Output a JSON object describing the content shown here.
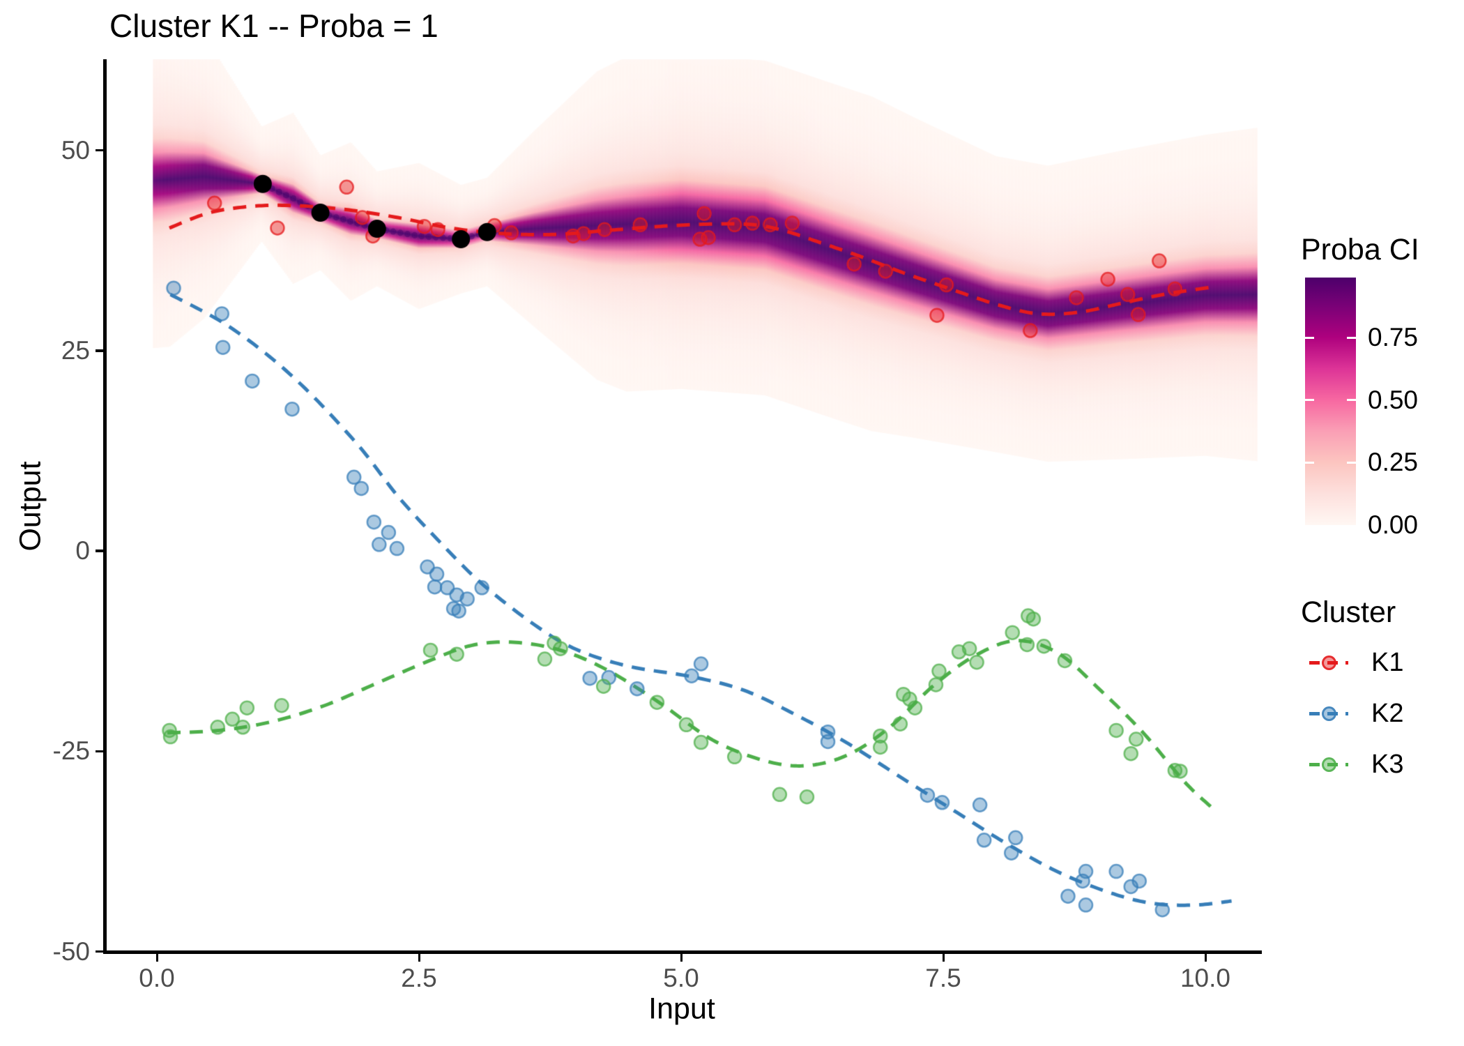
{
  "title": "Cluster K1 -- Proba = 1",
  "axis": {
    "x_label": "Input",
    "y_label": "Output",
    "x_ticks": [
      {
        "v": 0,
        "label": "0.0"
      },
      {
        "v": 2.5,
        "label": "2.5"
      },
      {
        "v": 5,
        "label": "5.0"
      },
      {
        "v": 7.5,
        "label": "7.5"
      },
      {
        "v": 10,
        "label": "10.0"
      }
    ],
    "y_ticks": [
      {
        "v": 50,
        "label": "50"
      },
      {
        "v": 25,
        "label": "25"
      },
      {
        "v": 0,
        "label": "0"
      },
      {
        "v": -25,
        "label": "-25"
      },
      {
        "v": -50,
        "label": "-50"
      }
    ]
  },
  "legend": {
    "proba": {
      "title": "Proba CI",
      "bar_max": 0.99,
      "ticks": [
        {
          "v": 0.75,
          "label": "0.75"
        },
        {
          "v": 0.5,
          "label": "0.50"
        },
        {
          "v": 0.25,
          "label": "0.25"
        },
        {
          "v": 0.0,
          "label": "0.00"
        }
      ],
      "colormap": [
        [
          0.0,
          "#FFF7F3"
        ],
        [
          0.125,
          "#FDE0DD"
        ],
        [
          0.25,
          "#FCC5C0"
        ],
        [
          0.375,
          "#FA9FB5"
        ],
        [
          0.5,
          "#F768A1"
        ],
        [
          0.625,
          "#DD3497"
        ],
        [
          0.75,
          "#AE017E"
        ],
        [
          0.875,
          "#7A0177"
        ],
        [
          1.0,
          "#49006A"
        ]
      ]
    },
    "cluster": {
      "title": "Cluster",
      "entries": [
        {
          "label": "K1",
          "color": "#E41A1C"
        },
        {
          "label": "K2",
          "color": "#377EB8"
        },
        {
          "label": "K3",
          "color": "#4DAF4A"
        }
      ]
    }
  },
  "chart_data": {
    "type": "scatter",
    "title": "Cluster K1 -- Proba = 1",
    "xlabel": "Input",
    "ylabel": "Output",
    "xlim": [
      -0.5,
      10.5
    ],
    "ylim": [
      -50,
      61
    ],
    "grid": false,
    "legend_position": "right",
    "series": [
      {
        "name": "K1",
        "color": "#E41A1C",
        "points": [
          [
            0.55,
            43.4
          ],
          [
            1.15,
            40.3
          ],
          [
            1.81,
            45.4
          ],
          [
            1.96,
            41.6
          ],
          [
            2.06,
            39.3
          ],
          [
            2.55,
            40.5
          ],
          [
            2.68,
            40.1
          ],
          [
            3.22,
            40.6
          ],
          [
            3.38,
            39.7
          ],
          [
            3.97,
            39.3
          ],
          [
            4.07,
            39.6
          ],
          [
            4.27,
            40.1
          ],
          [
            4.61,
            40.7
          ],
          [
            5.18,
            38.9
          ],
          [
            5.26,
            39.1
          ],
          [
            5.22,
            42.1
          ],
          [
            5.51,
            40.7
          ],
          [
            5.68,
            40.9
          ],
          [
            5.85,
            40.7
          ],
          [
            6.06,
            40.9
          ],
          [
            6.65,
            35.8
          ],
          [
            6.95,
            34.9
          ],
          [
            7.44,
            29.4
          ],
          [
            7.53,
            33.2
          ],
          [
            8.33,
            27.5
          ],
          [
            8.77,
            31.6
          ],
          [
            9.07,
            33.9
          ],
          [
            9.26,
            32.0
          ],
          [
            9.36,
            29.5
          ],
          [
            9.56,
            36.2
          ],
          [
            9.71,
            32.7
          ]
        ],
        "mean_curve": [
          [
            0.12,
            40.3
          ],
          [
            0.5,
            42.2
          ],
          [
            0.9,
            43.0
          ],
          [
            1.3,
            43.1
          ],
          [
            1.8,
            42.6
          ],
          [
            2.3,
            41.6
          ],
          [
            2.8,
            40.3
          ],
          [
            3.3,
            39.6
          ],
          [
            3.8,
            39.5
          ],
          [
            4.3,
            40.0
          ],
          [
            4.8,
            40.5
          ],
          [
            5.3,
            40.8
          ],
          [
            5.7,
            40.7
          ],
          [
            6.0,
            39.9
          ],
          [
            6.3,
            38.6
          ],
          [
            6.7,
            36.8
          ],
          [
            7.1,
            34.8
          ],
          [
            7.5,
            33.0
          ],
          [
            8.0,
            30.8
          ],
          [
            8.4,
            29.6
          ],
          [
            8.8,
            29.8
          ],
          [
            9.2,
            30.9
          ],
          [
            9.6,
            32.0
          ],
          [
            10.05,
            32.9
          ]
        ]
      },
      {
        "name": "K2",
        "color": "#377EB8",
        "points": [
          [
            0.16,
            32.8
          ],
          [
            0.62,
            29.6
          ],
          [
            0.63,
            25.4
          ],
          [
            0.91,
            21.2
          ],
          [
            1.29,
            17.7
          ],
          [
            1.88,
            9.2
          ],
          [
            1.95,
            7.8
          ],
          [
            2.07,
            3.6
          ],
          [
            2.12,
            0.8
          ],
          [
            2.21,
            2.3
          ],
          [
            2.29,
            0.3
          ],
          [
            2.58,
            -2.0
          ],
          [
            2.67,
            -2.9
          ],
          [
            2.65,
            -4.5
          ],
          [
            2.77,
            -4.6
          ],
          [
            2.86,
            -5.5
          ],
          [
            2.96,
            -6.0
          ],
          [
            2.83,
            -7.2
          ],
          [
            2.88,
            -7.5
          ],
          [
            3.1,
            -4.6
          ],
          [
            4.13,
            -15.9
          ],
          [
            4.31,
            -15.8
          ],
          [
            4.58,
            -17.2
          ],
          [
            5.1,
            -15.6
          ],
          [
            5.19,
            -14.1
          ],
          [
            6.4,
            -22.6
          ],
          [
            6.4,
            -23.8
          ],
          [
            7.35,
            -30.5
          ],
          [
            7.49,
            -31.4
          ],
          [
            7.85,
            -31.7
          ],
          [
            7.89,
            -36.1
          ],
          [
            8.19,
            -35.8
          ],
          [
            8.15,
            -37.7
          ],
          [
            8.69,
            -43.1
          ],
          [
            8.86,
            -40.0
          ],
          [
            8.83,
            -41.2
          ],
          [
            8.86,
            -44.2
          ],
          [
            9.15,
            -40.0
          ],
          [
            9.29,
            -41.9
          ],
          [
            9.37,
            -41.2
          ],
          [
            9.59,
            -44.8
          ]
        ],
        "mean_curve": [
          [
            0.13,
            32.0
          ],
          [
            0.7,
            27.9
          ],
          [
            1.3,
            21.7
          ],
          [
            1.9,
            13.5
          ],
          [
            2.3,
            6.8
          ],
          [
            2.7,
            1.1
          ],
          [
            3.1,
            -4.1
          ],
          [
            3.6,
            -9.2
          ],
          [
            4.0,
            -12.3
          ],
          [
            4.5,
            -14.4
          ],
          [
            5.1,
            -15.7
          ],
          [
            5.6,
            -17.4
          ],
          [
            6.1,
            -20.5
          ],
          [
            6.6,
            -24.1
          ],
          [
            7.1,
            -28.3
          ],
          [
            7.6,
            -32.4
          ],
          [
            8.1,
            -36.5
          ],
          [
            8.6,
            -40.1
          ],
          [
            9.1,
            -42.7
          ],
          [
            9.5,
            -44.0
          ],
          [
            9.9,
            -44.2
          ],
          [
            10.25,
            -43.7
          ]
        ]
      },
      {
        "name": "K3",
        "color": "#4DAF4A",
        "points": [
          [
            0.12,
            -22.4
          ],
          [
            0.13,
            -23.2
          ],
          [
            0.58,
            -22.0
          ],
          [
            0.72,
            -21.0
          ],
          [
            0.82,
            -22.0
          ],
          [
            0.86,
            -19.6
          ],
          [
            1.19,
            -19.3
          ],
          [
            2.61,
            -12.4
          ],
          [
            2.86,
            -12.9
          ],
          [
            3.7,
            -13.5
          ],
          [
            3.79,
            -11.5
          ],
          [
            3.85,
            -12.2
          ],
          [
            4.26,
            -16.9
          ],
          [
            4.77,
            -18.9
          ],
          [
            5.05,
            -21.7
          ],
          [
            5.19,
            -23.9
          ],
          [
            5.51,
            -25.7
          ],
          [
            5.94,
            -30.4
          ],
          [
            6.2,
            -30.7
          ],
          [
            6.9,
            -23.1
          ],
          [
            6.9,
            -24.5
          ],
          [
            7.09,
            -21.6
          ],
          [
            7.12,
            -17.9
          ],
          [
            7.18,
            -18.5
          ],
          [
            7.23,
            -19.6
          ],
          [
            7.43,
            -16.7
          ],
          [
            7.46,
            -15.0
          ],
          [
            7.82,
            -13.9
          ],
          [
            7.65,
            -12.6
          ],
          [
            7.75,
            -12.2
          ],
          [
            8.16,
            -10.2
          ],
          [
            8.3,
            -11.7
          ],
          [
            8.31,
            -8.1
          ],
          [
            8.36,
            -8.5
          ],
          [
            8.46,
            -11.9
          ],
          [
            8.66,
            -13.7
          ],
          [
            9.15,
            -22.4
          ],
          [
            9.34,
            -23.5
          ],
          [
            9.29,
            -25.3
          ],
          [
            9.71,
            -27.4
          ],
          [
            9.76,
            -27.5
          ]
        ],
        "mean_curve": [
          [
            0.1,
            -22.7
          ],
          [
            0.6,
            -22.4
          ],
          [
            1.1,
            -21.3
          ],
          [
            1.6,
            -19.3
          ],
          [
            2.1,
            -16.5
          ],
          [
            2.6,
            -13.7
          ],
          [
            3.0,
            -11.8
          ],
          [
            3.4,
            -11.4
          ],
          [
            3.85,
            -12.4
          ],
          [
            4.3,
            -14.9
          ],
          [
            4.8,
            -19.0
          ],
          [
            5.3,
            -23.6
          ],
          [
            5.8,
            -26.2
          ],
          [
            6.2,
            -26.8
          ],
          [
            6.6,
            -25.4
          ],
          [
            7.0,
            -21.9
          ],
          [
            7.4,
            -16.9
          ],
          [
            7.8,
            -13.1
          ],
          [
            8.2,
            -11.2
          ],
          [
            8.6,
            -12.8
          ],
          [
            9.0,
            -17.4
          ],
          [
            9.4,
            -22.6
          ],
          [
            9.8,
            -28.8
          ],
          [
            10.05,
            -31.9
          ]
        ]
      }
    ],
    "observed": {
      "name": "K1 observed points",
      "color": "#000000",
      "points": [
        [
          1.01,
          45.8
        ],
        [
          1.56,
          42.2
        ],
        [
          2.1,
          40.2
        ],
        [
          2.9,
          38.9
        ],
        [
          3.15,
          39.8
        ]
      ]
    },
    "proba_ribbon": {
      "name": "Proba CI density band (cluster K1)",
      "note": "path entries: [x, center_y, sigma_y, peak_proba]",
      "path": [
        [
          -0.03,
          46.2,
          2.4,
          0.8
        ],
        [
          0.45,
          46.7,
          1.8,
          0.95
        ],
        [
          1.0,
          45.8,
          0.45,
          1.0
        ],
        [
          1.3,
          44.0,
          0.9,
          0.9
        ],
        [
          1.56,
          42.2,
          0.45,
          1.0
        ],
        [
          1.85,
          41.1,
          0.8,
          0.9
        ],
        [
          2.1,
          40.2,
          0.45,
          1.0
        ],
        [
          2.5,
          39.3,
          0.7,
          0.95
        ],
        [
          2.9,
          38.9,
          0.4,
          1.0
        ],
        [
          3.15,
          39.8,
          0.4,
          1.0
        ],
        [
          3.6,
          40.2,
          1.1,
          0.95
        ],
        [
          4.2,
          40.6,
          2.0,
          0.9
        ],
        [
          5.0,
          41.1,
          2.6,
          0.88
        ],
        [
          5.8,
          40.3,
          2.5,
          0.9
        ],
        [
          6.5,
          37.2,
          2.3,
          0.92
        ],
        [
          7.2,
          34.2,
          2.1,
          0.95
        ],
        [
          8.0,
          30.8,
          1.9,
          0.95
        ],
        [
          8.5,
          29.6,
          1.9,
          0.95
        ],
        [
          9.2,
          30.7,
          2.0,
          0.93
        ],
        [
          10.0,
          31.9,
          2.1,
          0.92
        ],
        [
          10.5,
          32.0,
          2.2,
          0.9
        ]
      ],
      "beaded_segment_x": [
        1.03,
        3.27
      ]
    }
  }
}
